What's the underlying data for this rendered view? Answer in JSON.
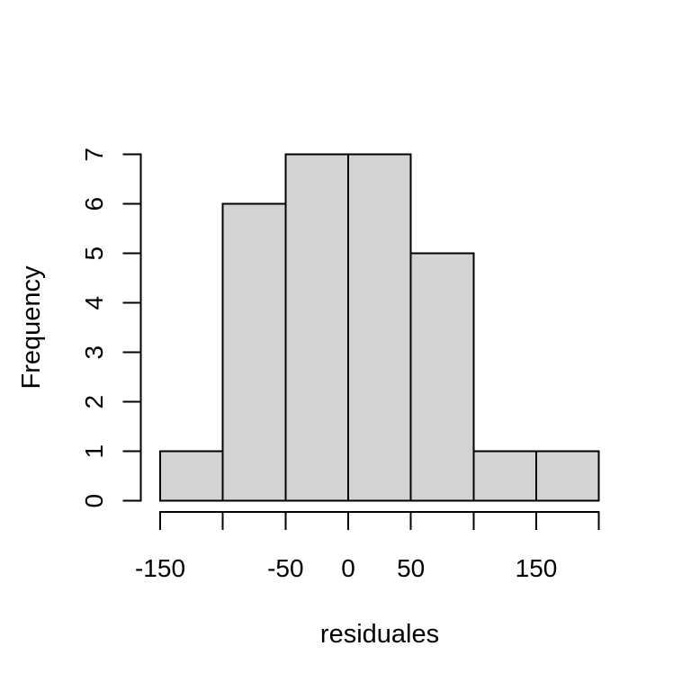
{
  "chart_data": {
    "type": "bar",
    "subtype": "histogram",
    "title": "",
    "xlabel": "residuales",
    "ylabel": "Frequency",
    "xlim": [
      -150,
      200
    ],
    "ylim": [
      0,
      7
    ],
    "bin_width": 50,
    "bin_edges": [
      -150,
      -100,
      -50,
      0,
      50,
      100,
      150,
      200
    ],
    "counts": [
      1,
      6,
      7,
      7,
      5,
      1,
      1
    ],
    "x_ticks": [
      {
        "value": -150,
        "label": "-150"
      },
      {
        "value": -100,
        "label": ""
      },
      {
        "value": -50,
        "label": "-50"
      },
      {
        "value": 0,
        "label": "0"
      },
      {
        "value": 50,
        "label": "50"
      },
      {
        "value": 100,
        "label": ""
      },
      {
        "value": 150,
        "label": "150"
      },
      {
        "value": 200,
        "label": ""
      }
    ],
    "y_ticks": [
      {
        "value": 0,
        "label": "0"
      },
      {
        "value": 1,
        "label": "1"
      },
      {
        "value": 2,
        "label": "2"
      },
      {
        "value": 3,
        "label": "3"
      },
      {
        "value": 4,
        "label": "4"
      },
      {
        "value": 5,
        "label": "5"
      },
      {
        "value": 6,
        "label": "6"
      },
      {
        "value": 7,
        "label": "7"
      }
    ],
    "grid": false,
    "legend": null,
    "colors": {
      "bar_fill": "#d3d3d3",
      "bar_border": "#000000",
      "axis": "#000000",
      "text": "#000000",
      "background": "#ffffff"
    }
  }
}
